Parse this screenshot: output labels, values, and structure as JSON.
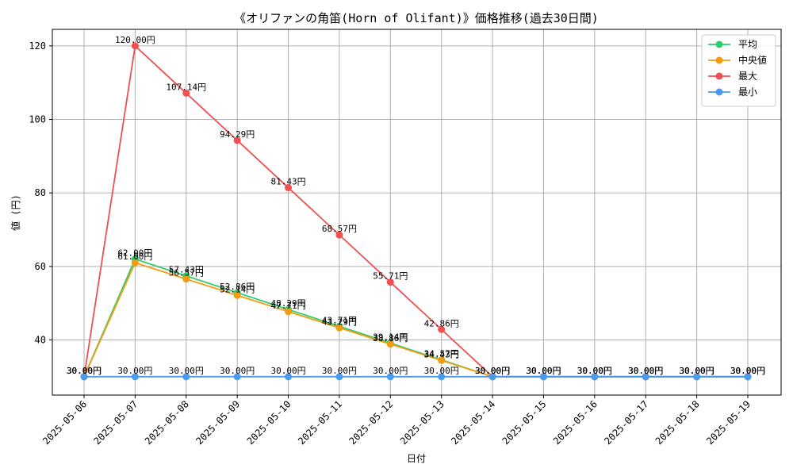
{
  "chart_data": {
    "type": "line",
    "title": "《オリファンの角笛(Horn of Olifant)》価格推移(過去30日間)",
    "xlabel": "日付",
    "ylabel": "値 (円)",
    "categories": [
      "2025-05-06",
      "2025-05-07",
      "2025-05-08",
      "2025-05-09",
      "2025-05-10",
      "2025-05-11",
      "2025-05-12",
      "2025-05-13",
      "2025-05-14",
      "2025-05-15",
      "2025-05-16",
      "2025-05-17",
      "2025-05-18",
      "2025-05-19"
    ],
    "ylim": [
      25.0,
      124.5
    ],
    "yticks": [
      40,
      60,
      80,
      100,
      120
    ],
    "grid": true,
    "legend_position": "top-right",
    "label_suffix": "円",
    "series": [
      {
        "name": "平均",
        "color": "#2ecc71",
        "values": [
          30.0,
          62.0,
          57.43,
          52.86,
          48.29,
          43.71,
          39.14,
          34.57,
          30.0,
          30.0,
          30.0,
          30.0,
          30.0,
          30.0
        ]
      },
      {
        "name": "中央値",
        "color": "#f39c12",
        "values": [
          30.0,
          61.0,
          56.57,
          52.14,
          47.71,
          43.29,
          38.86,
          34.43,
          30.0,
          30.0,
          30.0,
          30.0,
          30.0,
          30.0
        ]
      },
      {
        "name": "最大",
        "color": "#f05050",
        "values": [
          30.0,
          120.0,
          107.14,
          94.29,
          81.43,
          68.57,
          55.71,
          42.86,
          30.0,
          30.0,
          30.0,
          30.0,
          30.0,
          30.0
        ]
      },
      {
        "name": "最小",
        "color": "#4a9af0",
        "values": [
          30.0,
          30.0,
          30.0,
          30.0,
          30.0,
          30.0,
          30.0,
          30.0,
          30.0,
          30.0,
          30.0,
          30.0,
          30.0,
          30.0
        ]
      }
    ]
  }
}
